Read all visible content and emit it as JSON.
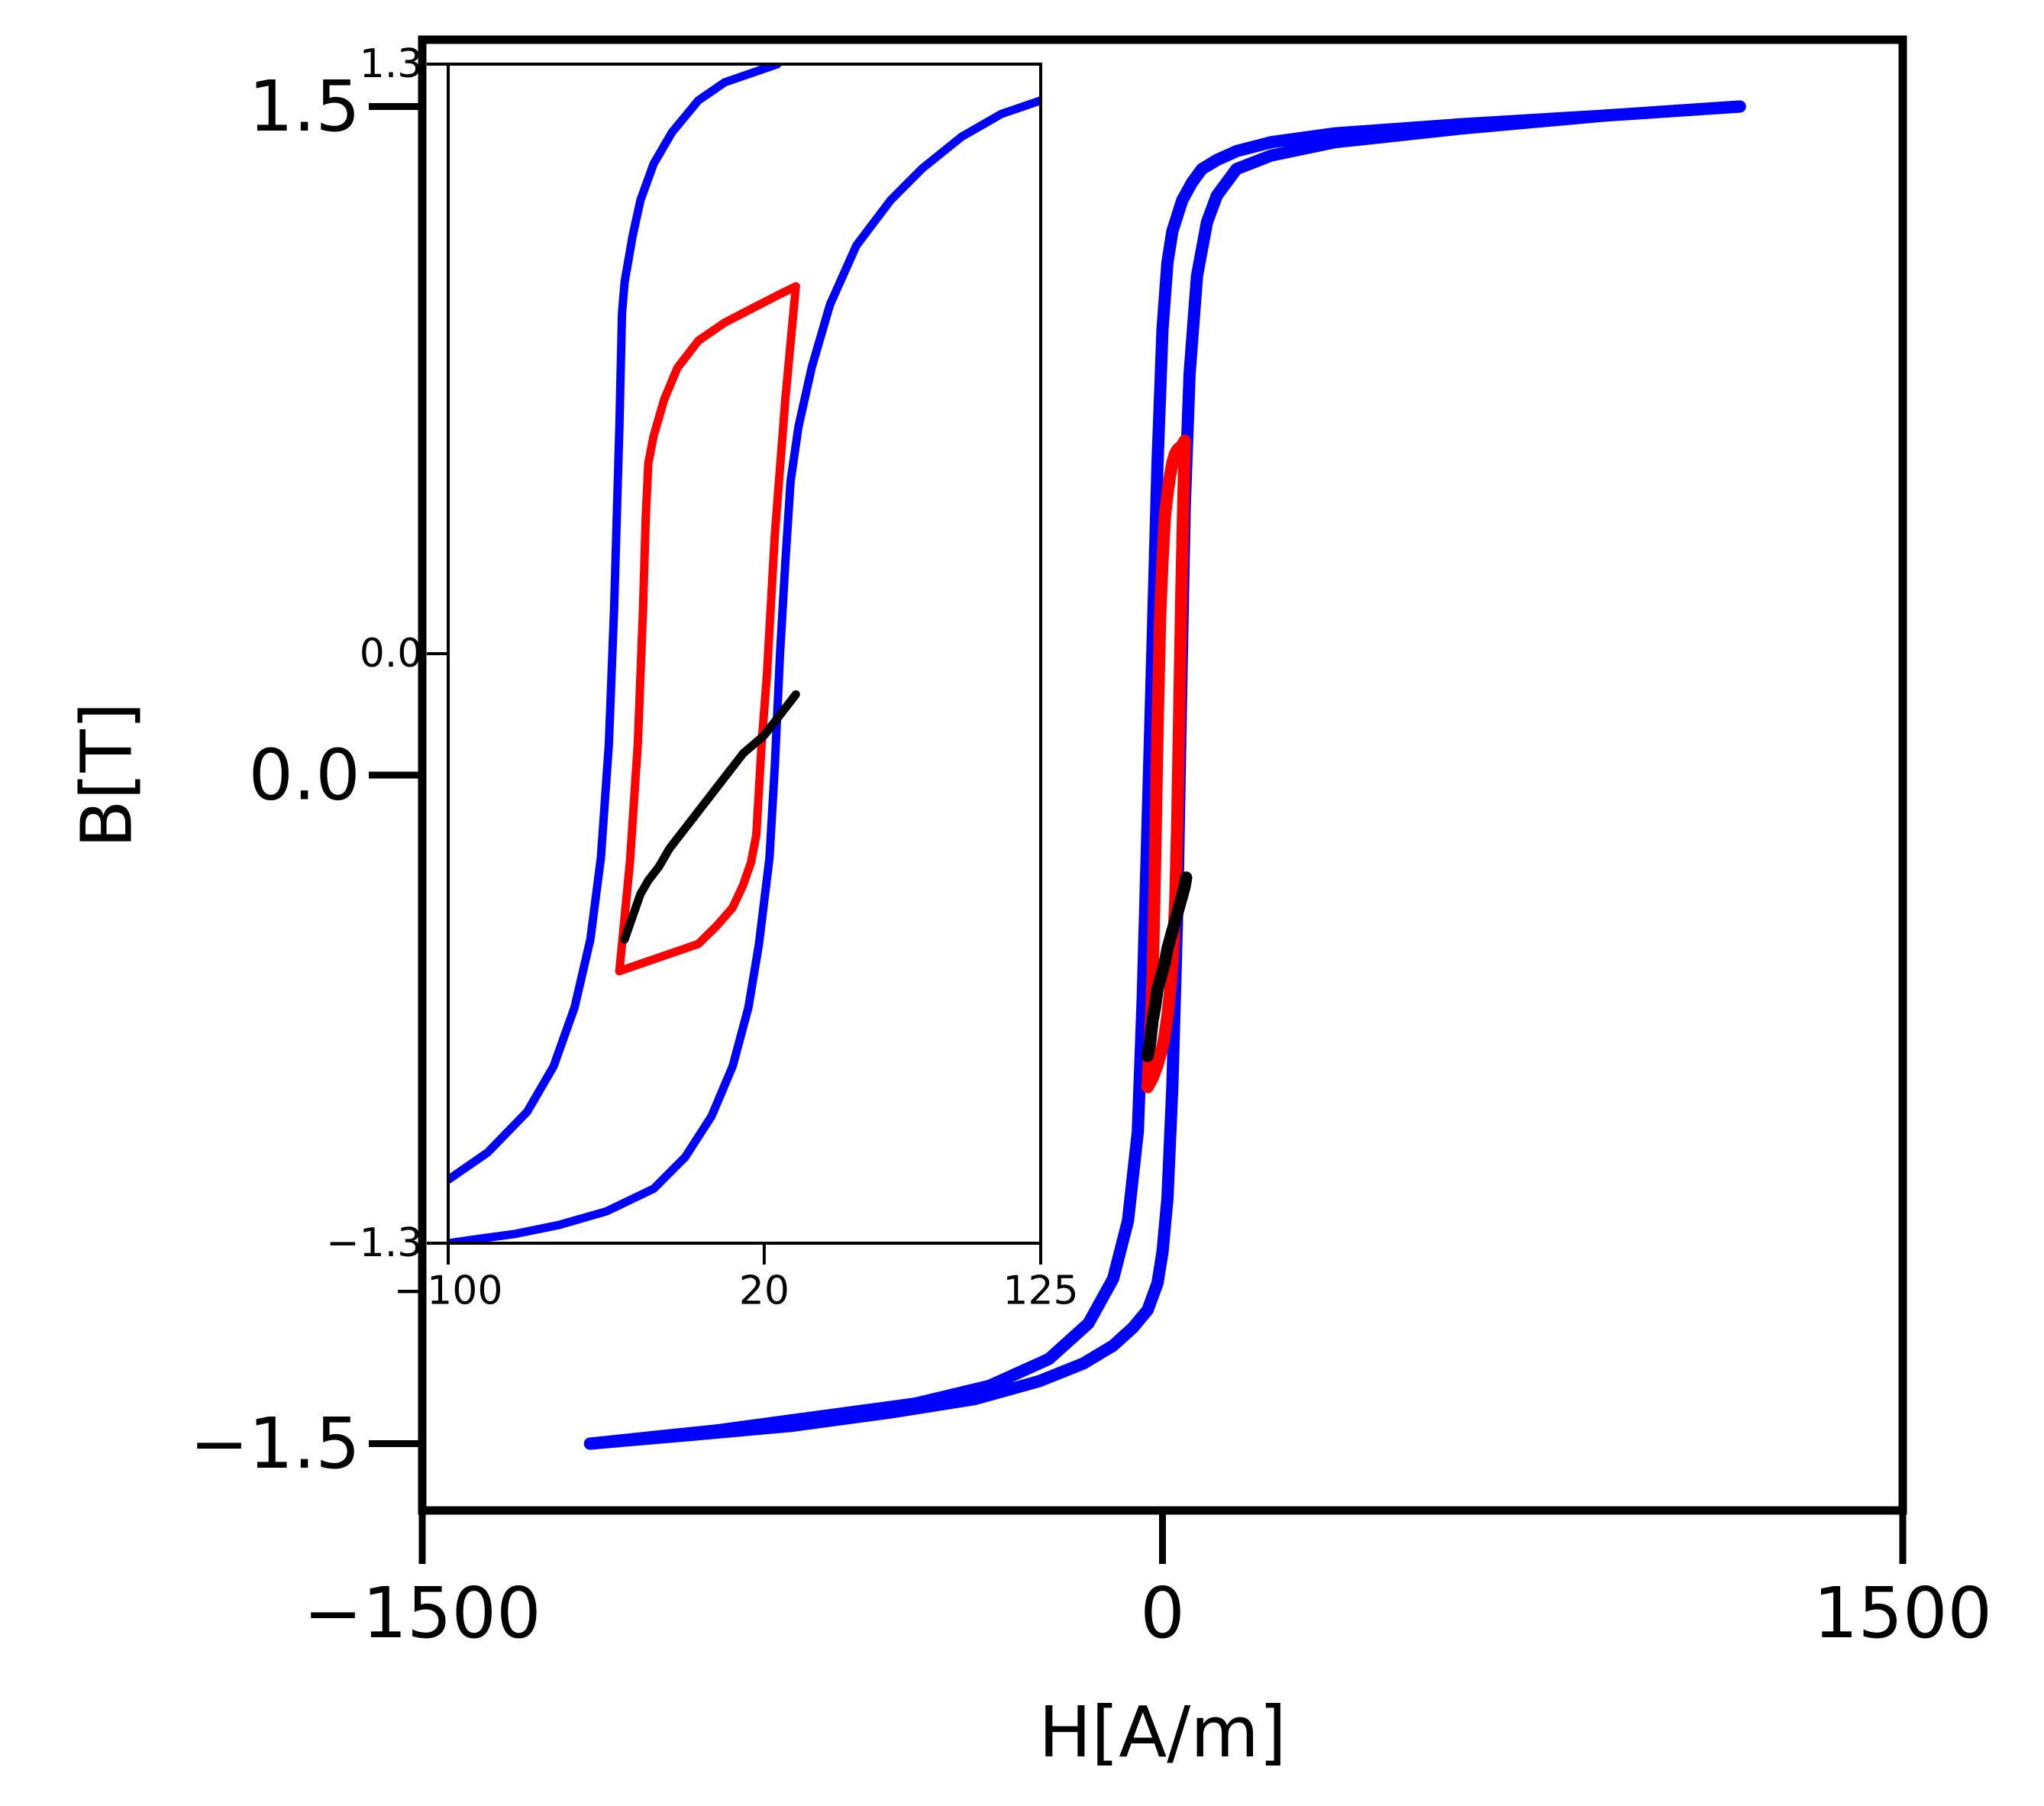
{
  "chart_data": [
    {
      "type": "line",
      "panel": "main",
      "xlabel": "H[A/m]",
      "ylabel": "B[T]",
      "xlim": [
        -1500,
        1500
      ],
      "ylim": [
        -1.65,
        1.65
      ],
      "xticks": [
        -1500,
        0,
        1500
      ],
      "xtick_labels": [
        "−1500",
        "0",
        "1500"
      ],
      "yticks": [
        -1.5,
        0.0,
        1.5
      ],
      "ytick_labels": [
        "−1.5",
        "0.0",
        "1.5"
      ],
      "grid": false,
      "series": [
        {
          "color": "#0000ff",
          "x": [
            -1160,
            -900,
            -700,
            -500,
            -350,
            -230,
            -150,
            -100,
            -70,
            -50,
            -40,
            -30,
            -20,
            -10,
            0,
            10,
            20,
            40,
            60,
            80,
            110,
            150,
            220,
            350,
            600,
            900,
            1170
          ],
          "y": [
            -1.5,
            -1.47,
            -1.44,
            -1.41,
            -1.37,
            -1.31,
            -1.23,
            -1.13,
            -1.0,
            -0.8,
            -0.5,
            -0.1,
            0.3,
            0.7,
            1.0,
            1.15,
            1.22,
            1.29,
            1.33,
            1.36,
            1.38,
            1.4,
            1.42,
            1.44,
            1.46,
            1.48,
            1.5
          ]
        },
        {
          "color": "#0000ff",
          "x": [
            1170,
            900,
            600,
            350,
            220,
            150,
            110,
            90,
            70,
            55,
            45,
            38,
            30,
            20,
            10,
            0,
            -10,
            -30,
            -60,
            -100,
            -160,
            -250,
            -380,
            -550,
            -750,
            -950,
            -1160
          ],
          "y": [
            1.5,
            1.48,
            1.45,
            1.42,
            1.39,
            1.36,
            1.3,
            1.24,
            1.12,
            0.9,
            0.6,
            0.2,
            -0.3,
            -0.7,
            -0.95,
            -1.07,
            -1.14,
            -1.2,
            -1.24,
            -1.28,
            -1.32,
            -1.36,
            -1.4,
            -1.43,
            -1.46,
            -1.48,
            -1.5
          ]
        },
        {
          "color": "#ff0000",
          "x": [
            -30,
            -25,
            -20,
            -15,
            -10,
            -5,
            0,
            5,
            10,
            15,
            20,
            25,
            30,
            40,
            45
          ],
          "y": [
            -0.7,
            -0.6,
            -0.45,
            -0.2,
            0.1,
            0.35,
            0.48,
            0.58,
            0.63,
            0.67,
            0.7,
            0.72,
            0.73,
            0.74,
            0.75
          ]
        },
        {
          "color": "#ff0000",
          "x": [
            45,
            42,
            38,
            34,
            30,
            26,
            22,
            18,
            14,
            10,
            5,
            0,
            -10,
            -20,
            -30
          ],
          "y": [
            0.75,
            0.6,
            0.4,
            0.15,
            -0.1,
            -0.28,
            -0.38,
            -0.45,
            -0.5,
            -0.54,
            -0.58,
            -0.61,
            -0.65,
            -0.68,
            -0.7
          ]
        },
        {
          "color": "#000000",
          "x": [
            -30,
            -25,
            -20,
            -15,
            -10,
            -5,
            0,
            5,
            10,
            15,
            20,
            25,
            30,
            35,
            40,
            45,
            48
          ],
          "y": [
            -0.63,
            -0.6,
            -0.55,
            -0.52,
            -0.48,
            -0.46,
            -0.44,
            -0.42,
            -0.39,
            -0.37,
            -0.35,
            -0.33,
            -0.31,
            -0.29,
            -0.27,
            -0.25,
            -0.23
          ]
        }
      ]
    },
    {
      "type": "line",
      "panel": "inset",
      "xlim": [
        -100,
        125
      ],
      "ylim": [
        -1.3,
        1.3
      ],
      "xticks": [
        -100,
        20,
        125
      ],
      "xtick_labels": [
        "−100",
        "20",
        "125"
      ],
      "yticks": [
        -1.3,
        0.0,
        1.3
      ],
      "ytick_labels": [
        "−1.3",
        "0.0",
        "1.3"
      ],
      "grid": false,
      "series": [
        {
          "color": "#0000ff",
          "x": [
            -100,
            -85,
            -70,
            -60,
            -52,
            -46,
            -42,
            -39,
            -37,
            -35,
            -34,
            -33,
            -30,
            -27,
            -22,
            -15,
            -5,
            5,
            15,
            25
          ],
          "y": [
            -1.16,
            -1.1,
            -1.01,
            -0.91,
            -0.78,
            -0.63,
            -0.45,
            -0.2,
            0.1,
            0.5,
            0.75,
            0.82,
            0.92,
            1.0,
            1.08,
            1.15,
            1.22,
            1.26,
            1.28,
            1.3
          ]
        },
        {
          "color": "#0000ff",
          "x": [
            125,
            110,
            95,
            80,
            68,
            55,
            45,
            38,
            33,
            30,
            28,
            26,
            24,
            22,
            18,
            14,
            8,
            0,
            -10,
            -22,
            -40,
            -58,
            -75,
            -88,
            -100
          ],
          "y": [
            1.22,
            1.19,
            1.14,
            1.07,
            1.0,
            0.9,
            0.77,
            0.63,
            0.5,
            0.38,
            0.2,
            0.0,
            -0.25,
            -0.45,
            -0.64,
            -0.78,
            -0.91,
            -1.02,
            -1.11,
            -1.18,
            -1.23,
            -1.26,
            -1.28,
            -1.29,
            -1.3
          ]
        },
        {
          "color": "#ff0000",
          "x": [
            -35,
            -31,
            -28,
            -26,
            -25,
            -24,
            -22,
            -18,
            -13,
            -5,
            5,
            15,
            25,
            32
          ],
          "y": [
            -0.7,
            -0.46,
            -0.2,
            0.1,
            0.3,
            0.42,
            0.48,
            0.56,
            0.63,
            0.69,
            0.73,
            0.76,
            0.79,
            0.81
          ]
        },
        {
          "color": "#ff0000",
          "x": [
            32,
            28,
            24,
            21,
            19,
            18,
            17,
            15,
            12,
            8,
            2,
            -5,
            -15,
            -25,
            -35
          ],
          "y": [
            0.81,
            0.56,
            0.26,
            -0.05,
            -0.2,
            -0.3,
            -0.4,
            -0.46,
            -0.51,
            -0.56,
            -0.6,
            -0.64,
            -0.66,
            -0.68,
            -0.7
          ]
        },
        {
          "color": "#000000",
          "x": [
            -33,
            -30,
            -27,
            -24,
            -20,
            -16,
            -12,
            -8,
            -4,
            0,
            4,
            8,
            12,
            16,
            20,
            24,
            28,
            32
          ],
          "y": [
            -0.63,
            -0.58,
            -0.53,
            -0.5,
            -0.47,
            -0.43,
            -0.4,
            -0.37,
            -0.34,
            -0.31,
            -0.28,
            -0.25,
            -0.22,
            -0.2,
            -0.18,
            -0.15,
            -0.12,
            -0.09
          ]
        }
      ]
    }
  ]
}
